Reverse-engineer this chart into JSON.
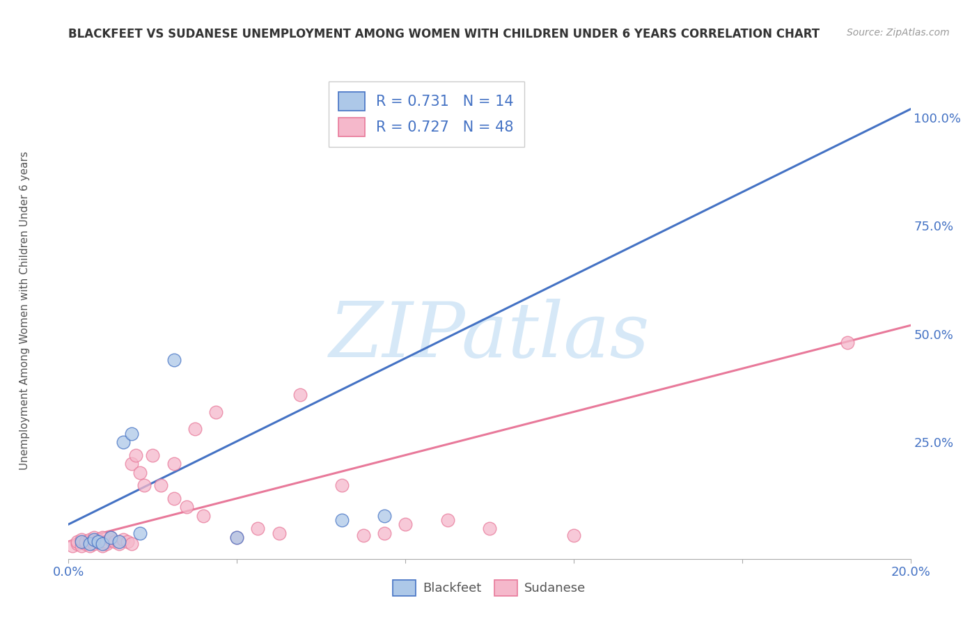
{
  "title": "BLACKFEET VS SUDANESE UNEMPLOYMENT AMONG WOMEN WITH CHILDREN UNDER 6 YEARS CORRELATION CHART",
  "source": "Source: ZipAtlas.com",
  "ylabel": "Unemployment Among Women with Children Under 6 years",
  "xmin": 0.0,
  "xmax": 0.2,
  "ymin": -0.02,
  "ymax": 1.1,
  "blackfeet_R": 0.731,
  "blackfeet_N": 14,
  "sudanese_R": 0.727,
  "sudanese_N": 48,
  "blackfeet_color": "#adc8e8",
  "blackfeet_edge_color": "#4472c4",
  "sudanese_color": "#f5b8cb",
  "sudanese_edge_color": "#e8799a",
  "blackfeet_line_color": "#4472c4",
  "sudanese_line_color": "#e8799a",
  "watermark_text": "ZIPatlas",
  "watermark_color": "#d6e8f7",
  "background_color": "#ffffff",
  "blackfeet_scatter_x": [
    0.003,
    0.005,
    0.006,
    0.007,
    0.008,
    0.01,
    0.012,
    0.013,
    0.015,
    0.017,
    0.025,
    0.04,
    0.065,
    0.075
  ],
  "blackfeet_scatter_y": [
    0.02,
    0.015,
    0.025,
    0.02,
    0.015,
    0.03,
    0.02,
    0.25,
    0.27,
    0.04,
    0.44,
    0.03,
    0.07,
    0.08
  ],
  "sudanese_scatter_x": [
    0.001,
    0.002,
    0.002,
    0.003,
    0.003,
    0.004,
    0.004,
    0.005,
    0.005,
    0.006,
    0.006,
    0.007,
    0.007,
    0.008,
    0.008,
    0.009,
    0.009,
    0.01,
    0.01,
    0.011,
    0.012,
    0.013,
    0.014,
    0.015,
    0.015,
    0.016,
    0.017,
    0.018,
    0.02,
    0.022,
    0.025,
    0.025,
    0.028,
    0.03,
    0.032,
    0.035,
    0.04,
    0.045,
    0.05,
    0.055,
    0.065,
    0.07,
    0.075,
    0.08,
    0.09,
    0.1,
    0.12,
    0.185
  ],
  "sudanese_scatter_y": [
    0.01,
    0.015,
    0.02,
    0.01,
    0.025,
    0.015,
    0.02,
    0.01,
    0.025,
    0.015,
    0.03,
    0.02,
    0.025,
    0.01,
    0.03,
    0.015,
    0.02,
    0.025,
    0.03,
    0.02,
    0.015,
    0.025,
    0.02,
    0.015,
    0.2,
    0.22,
    0.18,
    0.15,
    0.22,
    0.15,
    0.12,
    0.2,
    0.1,
    0.28,
    0.08,
    0.32,
    0.03,
    0.05,
    0.04,
    0.36,
    0.15,
    0.035,
    0.04,
    0.06,
    0.07,
    0.05,
    0.035,
    0.48
  ],
  "blackfeet_trendline_x": [
    0.0,
    0.2
  ],
  "blackfeet_trendline_y": [
    0.06,
    1.02
  ],
  "sudanese_trendline_x": [
    0.0,
    0.2
  ],
  "sudanese_trendline_y": [
    0.02,
    0.52
  ],
  "x_ticks": [
    0.0,
    0.04,
    0.08,
    0.12,
    0.16,
    0.2
  ],
  "x_tick_labels": [
    "0.0%",
    "",
    "",
    "",
    "",
    "20.0%"
  ],
  "y_ticks": [
    0.0,
    0.25,
    0.5,
    0.75,
    1.0
  ],
  "y_tick_labels": [
    "",
    "25.0%",
    "50.0%",
    "75.0%",
    "100.0%"
  ]
}
